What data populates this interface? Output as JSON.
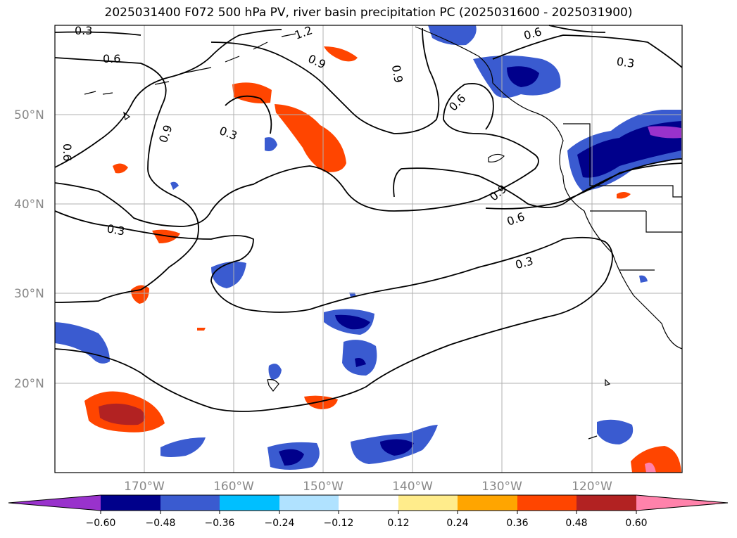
{
  "title": "2025031400 F072 500 hPa PV, river basin precipitation PC (2025031600 - 2025031900)",
  "lat_labels": [
    "50°N",
    "40°N",
    "30°N",
    "20°N"
  ],
  "lon_labels": [
    "170°W",
    "160°W",
    "150°W",
    "140°W",
    "130°W",
    "120°W"
  ],
  "contour_labels": [
    "0.3",
    "0.6",
    "0.9",
    "0.6",
    "0.9",
    "0.3",
    "0.9",
    "0.3",
    "0.6",
    "0.6",
    "0.3",
    "0.9",
    "0.6",
    "0.3",
    "1.2"
  ],
  "colorbar": {
    "tick_labels": [
      "−0.60",
      "−0.48",
      "−0.36",
      "−0.24",
      "−0.12",
      "0.12",
      "0.24",
      "0.36",
      "0.48",
      "0.60"
    ],
    "colors": [
      "#9932CC",
      "#00008B",
      "#3A5BD0",
      "#00BFFF",
      "#B0E2FF",
      "#FFFFFF",
      "#FFEC8B",
      "#FFA500",
      "#FF4500",
      "#B22222",
      "#FF82AB"
    ]
  }
}
